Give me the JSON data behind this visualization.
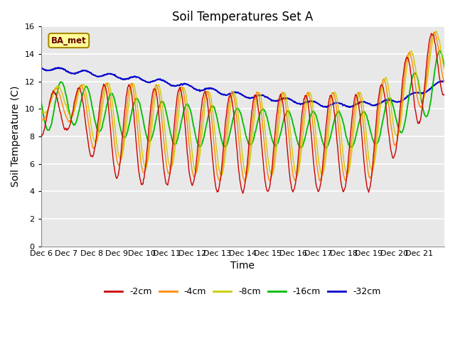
{
  "title": "Soil Temperatures Set A",
  "xlabel": "Time",
  "ylabel": "Soil Temperature (C)",
  "ylim": [
    0,
    16
  ],
  "yticks": [
    0,
    2,
    4,
    6,
    8,
    10,
    12,
    14,
    16
  ],
  "x_labels": [
    "Dec 6",
    "Dec 7",
    "Dec 8",
    "Dec 9",
    "Dec 10",
    "Dec 11",
    "Dec 12",
    "Dec 13",
    "Dec 14",
    "Dec 15",
    "Dec 16",
    "Dec 17",
    "Dec 18",
    "Dec 19",
    "Dec 20",
    "Dec 21"
  ],
  "annotation": "BA_met",
  "legend_labels": [
    "-2cm",
    "-4cm",
    "-8cm",
    "-16cm",
    "-32cm"
  ],
  "colors": [
    "#cc0000",
    "#ff8800",
    "#cccc00",
    "#00bb00",
    "#0000cc"
  ],
  "background_color": "#e8e8e8",
  "plot_bg_color": "#e8e8e8",
  "title_fontsize": 12,
  "label_fontsize": 10,
  "tick_fontsize": 8
}
